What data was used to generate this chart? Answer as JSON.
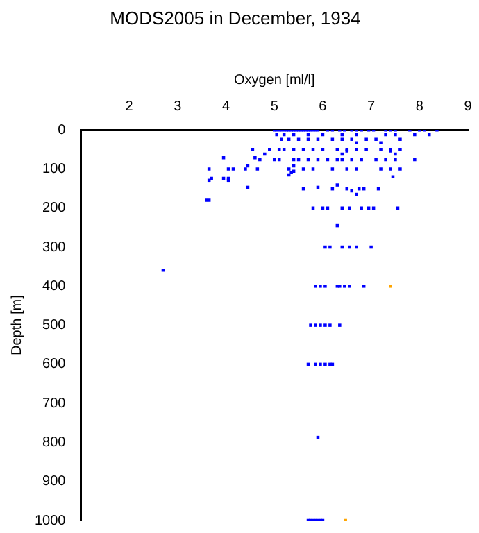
{
  "chart_data": {
    "type": "scatter",
    "title": "MODS2005 in December, 1934",
    "xlabel": "Oxygen [ml/l]",
    "ylabel": "Depth [m]",
    "xlim": [
      1,
      9
    ],
    "ylim": [
      1000,
      0
    ],
    "xticks": [
      2,
      3,
      4,
      5,
      6,
      7,
      8,
      9
    ],
    "yticks": [
      0,
      100,
      200,
      300,
      400,
      500,
      600,
      700,
      800,
      900,
      1000
    ],
    "grid": false,
    "legend": false,
    "marker": "square",
    "series": [
      {
        "color": "#0000ff",
        "x": [
          5.0,
          5.05,
          5.1,
          5.15,
          5.2,
          5.25,
          5.3,
          5.35,
          5.4,
          5.45,
          5.5,
          5.55,
          5.6,
          5.65,
          5.7,
          5.75,
          5.8,
          5.85,
          5.9,
          6.1,
          6.2,
          6.35,
          6.45,
          6.6,
          6.7,
          6.8,
          6.95,
          7.05,
          7.3,
          7.4,
          7.5,
          7.8,
          8.0,
          8.1,
          8.36,
          5.05,
          5.2,
          5.4,
          5.7,
          6.0,
          6.4,
          6.7,
          7.3,
          7.5,
          7.9,
          8.2,
          5.15,
          5.3,
          5.5,
          5.7,
          5.9,
          6.2,
          6.4,
          6.6,
          6.9,
          7.1,
          7.6,
          6.7,
          7.2,
          4.55,
          4.9,
          5.1,
          5.2,
          5.4,
          5.6,
          5.8,
          6.0,
          6.3,
          6.5,
          6.7,
          6.9,
          7.2,
          7.4,
          7.6,
          6.5,
          7.4,
          4.8,
          6.4,
          7.5,
          3.95,
          4.6,
          4.7,
          5.0,
          5.1,
          5.4,
          5.5,
          5.7,
          5.9,
          6.1,
          6.3,
          6.4,
          6.6,
          6.8,
          7.1,
          7.3,
          7.5,
          7.9,
          4.45,
          5.4,
          3.65,
          4.05,
          4.15,
          4.4,
          4.65,
          5.3,
          5.6,
          5.8,
          6.2,
          6.5,
          6.7,
          7.2,
          7.4,
          7.6,
          5.4,
          5.35,
          5.3,
          7.45,
          3.7,
          3.95,
          4.05,
          3.65,
          4.05,
          6.3,
          4.45,
          5.9,
          5.6,
          6.2,
          6.5,
          6.75,
          6.85,
          7.15,
          6.6,
          6.7,
          3.6,
          3.65,
          5.8,
          6.0,
          6.1,
          6.4,
          6.55,
          6.8,
          6.95,
          7.05,
          7.55,
          6.3,
          6.05,
          6.15,
          6.4,
          6.55,
          6.7,
          7.0,
          2.7,
          5.85,
          5.95,
          6.05,
          6.3,
          6.35,
          6.45,
          6.55,
          6.85,
          5.75,
          5.85,
          5.95,
          6.05,
          6.15,
          6.35,
          5.7,
          5.85,
          5.95,
          6.05,
          6.15,
          6.2,
          5.9,
          5.7,
          5.75,
          5.8,
          5.85,
          5.9,
          5.95,
          6.0
        ],
        "values": [
          0,
          0,
          0,
          0,
          0,
          0,
          0,
          0,
          0,
          0,
          0,
          0,
          0,
          0,
          0,
          0,
          0,
          0,
          0,
          0,
          0,
          0,
          0,
          0,
          0,
          0,
          0,
          0,
          0,
          0,
          0,
          0,
          0,
          0,
          0,
          12,
          12,
          12,
          12,
          12,
          12,
          12,
          12,
          12,
          12,
          12,
          24,
          24,
          24,
          24,
          24,
          24,
          24,
          24,
          24,
          24,
          24,
          33,
          33,
          50,
          50,
          50,
          50,
          50,
          50,
          50,
          50,
          50,
          50,
          50,
          50,
          50,
          50,
          50,
          54,
          54,
          62,
          62,
          62,
          71,
          71,
          76,
          76,
          76,
          76,
          76,
          76,
          76,
          76,
          76,
          76,
          76,
          76,
          76,
          76,
          76,
          76,
          92,
          92,
          100,
          100,
          100,
          100,
          100,
          100,
          100,
          100,
          100,
          100,
          100,
          100,
          100,
          100,
          106,
          109,
          115,
          120,
          124,
          124,
          124,
          129,
          129,
          141,
          147,
          147,
          151,
          151,
          151,
          151,
          151,
          151,
          156,
          165,
          180,
          180,
          200,
          200,
          200,
          200,
          200,
          200,
          200,
          200,
          200,
          245,
          300,
          300,
          300,
          300,
          300,
          300,
          359,
          400,
          400,
          400,
          400,
          400,
          400,
          400,
          400,
          500,
          500,
          500,
          500,
          500,
          500,
          600,
          600,
          600,
          600,
          600,
          600,
          787,
          1000,
          1000,
          1000,
          1000,
          1000,
          1000,
          1000
        ]
      },
      {
        "color": "#ffa500",
        "x": [
          7.4,
          6.47
        ],
        "values": [
          400,
          1000
        ]
      }
    ]
  }
}
